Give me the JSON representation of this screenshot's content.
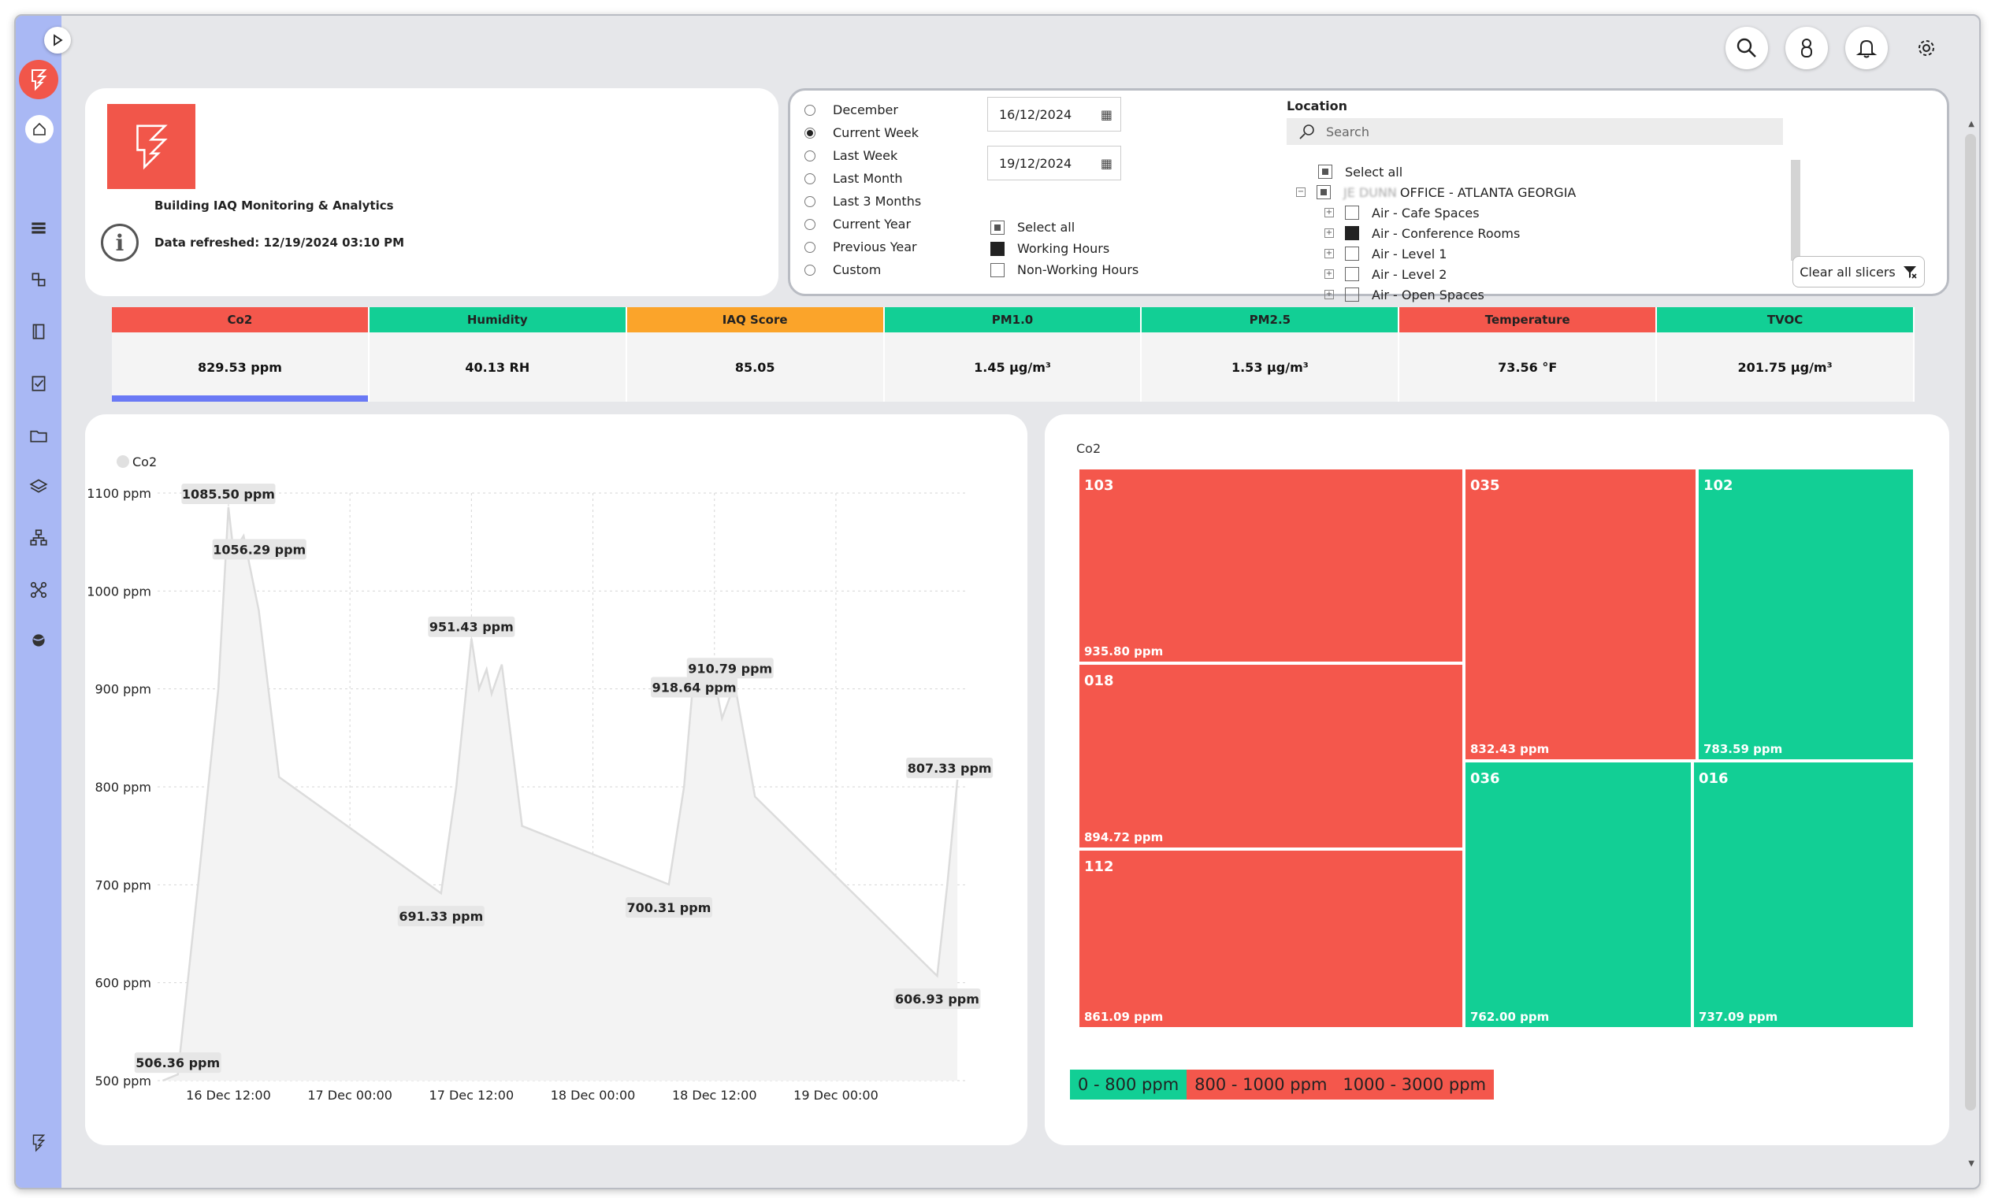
{
  "header": {
    "title": "Building IAQ Monitoring & Analytics",
    "refreshed": "Data refreshed: 12/19/2024 03:10 PM"
  },
  "period_options": [
    {
      "label": "December",
      "selected": false
    },
    {
      "label": "Current Week",
      "selected": true
    },
    {
      "label": "Last Week",
      "selected": false
    },
    {
      "label": "Last Month",
      "selected": false
    },
    {
      "label": "Last 3 Months",
      "selected": false
    },
    {
      "label": "Current Year",
      "selected": false
    },
    {
      "label": "Previous Year",
      "selected": false
    },
    {
      "label": "Custom",
      "selected": false
    }
  ],
  "dates": {
    "start": "16/12/2024",
    "end": "19/12/2024"
  },
  "hours": {
    "select_all": "Select all",
    "working": "Working Hours",
    "non_working": "Non-Working Hours"
  },
  "location": {
    "title": "Location",
    "search_placeholder": "Search",
    "select_all": "Select all",
    "site_blurred": "JE DUNN",
    "site": "OFFICE - ATLANTA GEORGIA",
    "children": [
      "Air - Cafe Spaces",
      "Air - Conference Rooms",
      "Air - Level 1",
      "Air - Level 2",
      "Air - Open Spaces"
    ],
    "clear": "Clear all slicers"
  },
  "kpis": [
    {
      "name": "Co2",
      "value": "829.53 ppm",
      "color": "#f4574c"
    },
    {
      "name": "Humidity",
      "value": "40.13 RH",
      "color": "#12cf95"
    },
    {
      "name": "IAQ Score",
      "value": "85.05",
      "color": "#fba42a"
    },
    {
      "name": "PM1.0",
      "value": "1.45 µg/m³",
      "color": "#12cf95"
    },
    {
      "name": "PM2.5",
      "value": "1.53 µg/m³",
      "color": "#12cf95"
    },
    {
      "name": "Temperature",
      "value": "73.56 °F",
      "color": "#f4574c"
    },
    {
      "name": "TVOC",
      "value": "201.75 µg/m³",
      "color": "#12cf95"
    }
  ],
  "chart_data": {
    "type": "area",
    "legend": "Co2",
    "ylim": [
      500,
      1100
    ],
    "yticks": [
      "500 ppm",
      "600 ppm",
      "700 ppm",
      "800 ppm",
      "900 ppm",
      "1000 ppm",
      "1100 ppm"
    ],
    "xticks": [
      "16 Dec 12:00",
      "17 Dec 00:00",
      "17 Dec 12:00",
      "18 Dec 00:00",
      "18 Dec 12:00",
      "19 Dec 00:00"
    ],
    "points": [
      [
        "2024-12-16T05:30",
        500
      ],
      [
        "2024-12-16T07:00",
        506.36
      ],
      [
        "2024-12-16T09:00",
        700
      ],
      [
        "2024-12-16T11:00",
        900
      ],
      [
        "2024-12-16T12:00",
        1085.5
      ],
      [
        "2024-12-16T12:30",
        1040
      ],
      [
        "2024-12-16T13:30",
        1056.29
      ],
      [
        "2024-12-16T15:00",
        980
      ],
      [
        "2024-12-16T17:00",
        810
      ],
      [
        "2024-12-17T09:00",
        691.33
      ],
      [
        "2024-12-17T10:30",
        800
      ],
      [
        "2024-12-17T12:00",
        951.43
      ],
      [
        "2024-12-17T12:45",
        900
      ],
      [
        "2024-12-17T13:30",
        920
      ],
      [
        "2024-12-17T14:00",
        895
      ],
      [
        "2024-12-17T15:00",
        925
      ],
      [
        "2024-12-17T17:00",
        760
      ],
      [
        "2024-12-18T07:30",
        700.31
      ],
      [
        "2024-12-18T09:00",
        800
      ],
      [
        "2024-12-18T10:00",
        918.64
      ],
      [
        "2024-12-18T11:00",
        900
      ],
      [
        "2024-12-18T12:00",
        910.79
      ],
      [
        "2024-12-18T12:45",
        870
      ],
      [
        "2024-12-18T14:00",
        905
      ],
      [
        "2024-12-18T16:00",
        790
      ],
      [
        "2024-12-19T10:00",
        606.93
      ],
      [
        "2024-12-19T11:00",
        700
      ],
      [
        "2024-12-19T12:00",
        807.33
      ]
    ],
    "labels": [
      {
        "text": "506.36 ppm",
        "x": "2024-12-16T07:00",
        "y": 506.36
      },
      {
        "text": "1085.50 ppm",
        "x": "2024-12-16T12:00",
        "y": 1085.5
      },
      {
        "text": "1056.29 ppm",
        "x": "2024-12-16T13:30",
        "y": 1056.29
      },
      {
        "text": "951.43 ppm",
        "x": "2024-12-17T12:00",
        "y": 951.43
      },
      {
        "text": "691.33 ppm",
        "x": "2024-12-17T09:00",
        "y": 691.33
      },
      {
        "text": "918.64 ppm",
        "x": "2024-12-18T10:00",
        "y": 918.64
      },
      {
        "text": "910.79 ppm",
        "x": "2024-12-18T12:00",
        "y": 910.79
      },
      {
        "text": "700.31 ppm",
        "x": "2024-12-18T07:30",
        "y": 700.31
      },
      {
        "text": "807.33 ppm",
        "x": "2024-12-19T12:00",
        "y": 807.33
      },
      {
        "text": "606.93 ppm",
        "x": "2024-12-19T10:00",
        "y": 606.93
      }
    ]
  },
  "treemap": {
    "title": "Co2",
    "tiles": [
      {
        "name": "103",
        "value": "935.80 ppm",
        "color": "#f4574c"
      },
      {
        "name": "018",
        "value": "894.72 ppm",
        "color": "#f4574c"
      },
      {
        "name": "112",
        "value": "861.09 ppm",
        "color": "#f4574c"
      },
      {
        "name": "035",
        "value": "832.43 ppm",
        "color": "#f4574c"
      },
      {
        "name": "102",
        "value": "783.59 ppm",
        "color": "#12cf95"
      },
      {
        "name": "036",
        "value": "762.00 ppm",
        "color": "#12cf95"
      },
      {
        "name": "016",
        "value": "737.09 ppm",
        "color": "#12cf95"
      }
    ],
    "legend": [
      {
        "label": "0 - 800 ppm",
        "color": "#12cf95"
      },
      {
        "label": "800 - 1000 ppm",
        "color": "#f4574c"
      },
      {
        "label": "1000 - 3000 ppm",
        "color": "#f4574c"
      }
    ]
  },
  "icons": [
    "play-icon",
    "app-logo-icon",
    "home-icon",
    "stack-icon",
    "buildings-icon",
    "notebook-icon",
    "checklist-icon",
    "folder-icon",
    "layers-icon",
    "network-icon",
    "nodes-icon",
    "sphere-icon",
    "search-icon",
    "user-icon",
    "bell-icon",
    "gear-icon",
    "info-icon",
    "calendar-icon",
    "filter-clear-icon"
  ]
}
